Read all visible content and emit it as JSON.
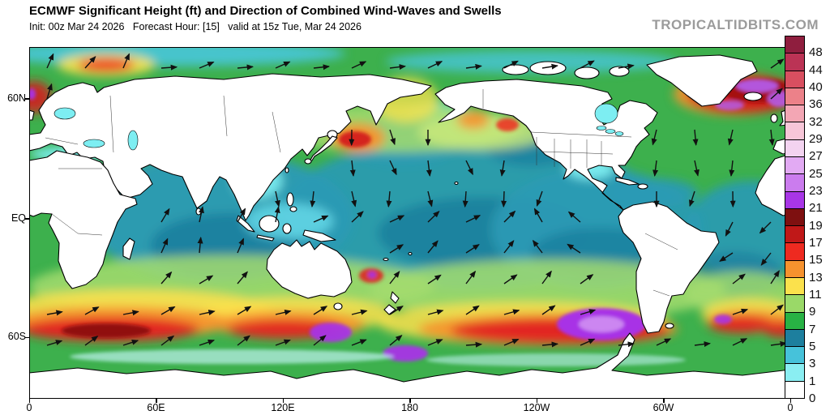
{
  "header": {
    "title": "ECMWF Significant Height (ft) and Direction of Combined Wind-Waves and Swells",
    "subtitle": "Init: 00z Mar 24 2026   Forecast Hour: [15]   valid at 15z Tue, Mar 24 2026",
    "watermark": "TROPICALTIDBITS.COM"
  },
  "axes": {
    "x_tick_labels": [
      "0",
      "60E",
      "120E",
      "180",
      "120W",
      "60W",
      "0"
    ],
    "y_tick_labels": [
      "60N",
      "EQ",
      "60S"
    ]
  },
  "colorbar": {
    "unit": "ft",
    "tick_labels": [
      "48",
      "44",
      "40",
      "36",
      "32",
      "29",
      "27",
      "25",
      "23",
      "21",
      "19",
      "17",
      "15",
      "13",
      "11",
      "9",
      "7",
      "5",
      "3",
      "1",
      "0"
    ],
    "cell_colors_top_to_bottom": [
      "#8f1e3e",
      "#bb3355",
      "#d94f60",
      "#ec8189",
      "#f3a6b4",
      "#f7c6d8",
      "#f3d3f0",
      "#e2aaf3",
      "#cb7cee",
      "#a836e6",
      "#7e1010",
      "#c01818",
      "#ee2a20",
      "#f6922e",
      "#fbe14c",
      "#9ad968",
      "#28b244",
      "#1d7f9e",
      "#46c2da",
      "#8aeef2",
      "#ffffff"
    ]
  },
  "chart_data": {
    "type": "heatmap",
    "title": "ECMWF Significant Height (ft) and Direction of Combined Wind-Waves and Swells",
    "init": "00z Mar 24 2026",
    "forecast_hour": 15,
    "valid": "15z Tue, Mar 24 2026",
    "projection": "global cylindrical lat-lon, centered near 180",
    "x_ticks": [
      "0",
      "60E",
      "120E",
      "180",
      "120W",
      "60W",
      "0"
    ],
    "y_ticks": [
      "60N",
      "EQ",
      "60S"
    ],
    "colorbar_levels_ft": [
      0,
      1,
      3,
      5,
      7,
      9,
      11,
      13,
      15,
      17,
      19,
      21,
      23,
      25,
      27,
      29,
      32,
      36,
      40,
      44,
      48
    ],
    "colorbar_colors_top_to_bottom": [
      "#8f1e3e",
      "#bb3355",
      "#d94f60",
      "#ec8189",
      "#f3a6b4",
      "#f7c6d8",
      "#f3d3f0",
      "#e2aaf3",
      "#cb7cee",
      "#a836e6",
      "#7e1010",
      "#c01818",
      "#ee2a20",
      "#f6922e",
      "#fbe14c",
      "#9ad968",
      "#28b244",
      "#1d7f9e",
      "#46c2da",
      "#8aeef2",
      "#ffffff"
    ],
    "notable_features": [
      {
        "region": "North Atlantic between Greenland and British Isles",
        "peak_height_ft": "21-27 (purple patches in 17-21 ft red core)"
      },
      {
        "region": "Norwegian Sea coast / Barents Sea",
        "peak_height_ft": "15-19"
      },
      {
        "region": "Northwest Pacific east of Japan",
        "peak_height_ft": "15-17"
      },
      {
        "region": "Southern Indian Ocean storm band",
        "peak_height_ft": "19-21"
      },
      {
        "region": "South of Australia and south of New Zealand",
        "peak_height_ft": "21-23 (purple)"
      },
      {
        "region": "South Pacific near Drake Passage / Patagonia",
        "peak_height_ft": "21-27 (large purple area)"
      },
      {
        "region": "South Atlantic storm",
        "peak_height_ft": "21-23 (small purple core)"
      },
      {
        "region": "Tropical oceans (Indian, central/east Pacific, equatorial Atlantic)",
        "typical_height_ft": "3-7"
      },
      {
        "region": "Arrows",
        "meaning": "direction of combined wind-waves and swells"
      }
    ]
  }
}
